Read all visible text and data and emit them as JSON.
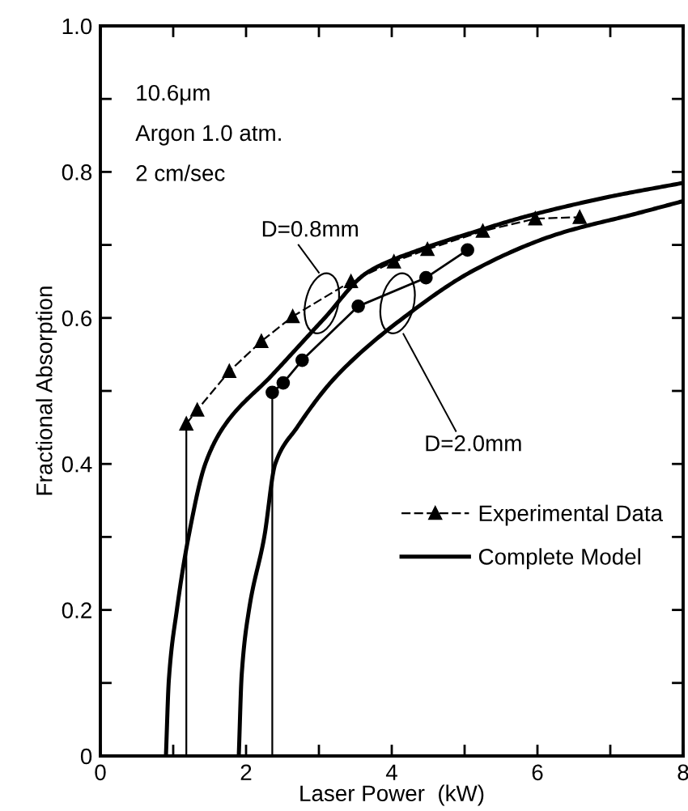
{
  "chart_data": {
    "type": "line",
    "xlabel": "Laser Power  (kW)",
    "ylabel": "Fractional Absorption",
    "xlim": [
      0,
      8
    ],
    "ylim": [
      0,
      1.0
    ],
    "xticks": [
      0,
      {
        "value": 1,
        "label": null
      },
      2,
      {
        "value": 3,
        "label": null
      },
      4,
      {
        "value": 5,
        "label": null
      },
      6,
      {
        "value": 7,
        "label": null
      },
      8
    ],
    "yticks": [
      0,
      {
        "value": 0.1,
        "label": null
      },
      0.2,
      {
        "value": 0.3,
        "label": null
      },
      0.4,
      {
        "value": 0.5,
        "label": null
      },
      0.6,
      {
        "value": 0.7,
        "label": null
      },
      0.8,
      {
        "value": 0.9,
        "label": null
      },
      {
        "value": 1.0,
        "label": "1.0"
      }
    ],
    "grid": false,
    "legend": "right",
    "series": [
      {
        "name": "Experimental Data",
        "color": "#000000",
        "marker": "triangle",
        "line_style": "dashed",
        "x": [
          1.18,
          1.33,
          1.77,
          2.21,
          2.64,
          3.44,
          4.03,
          4.49,
          5.25,
          5.97,
          6.58
        ],
        "values": [
          0.455,
          0.474,
          0.527,
          0.568,
          0.602,
          0.65,
          0.677,
          0.694,
          0.719,
          0.736,
          0.738
        ]
      },
      {
        "color": "#000000",
        "marker": "circle",
        "line_style": "solid",
        "x": [
          2.36,
          2.51,
          2.77,
          3.54,
          4.47,
          5.04
        ],
        "values": [
          0.498,
          0.511,
          0.542,
          0.616,
          0.655,
          0.693
        ]
      },
      {
        "color": "#000000",
        "marker": "none",
        "line_style": "solid",
        "x": [
          1.18,
          1.18
        ],
        "values": [
          0,
          0.455
        ]
      },
      {
        "color": "#000000",
        "marker": "none",
        "line_style": "solid",
        "x": [
          2.36,
          2.36
        ],
        "values": [
          0,
          0.498
        ]
      },
      {
        "name": "Complete Model",
        "color": "#000000",
        "marker": "none",
        "line_style": "solid",
        "x": [
          0.9,
          0.94,
          1.05,
          1.21,
          1.44,
          1.7,
          2.36,
          3.07,
          3.66,
          4.4,
          5.14,
          5.88,
          6.99,
          8.0
        ],
        "values": [
          0,
          0.104,
          0.2,
          0.3,
          0.4,
          0.452,
          0.522,
          0.599,
          0.662,
          0.694,
          0.718,
          0.74,
          0.766,
          0.785
        ]
      },
      {
        "color": "#000000",
        "marker": "none",
        "line_style": "solid",
        "x": [
          1.9,
          1.94,
          2.04,
          2.25,
          2.4,
          2.7,
          3.22,
          4.25,
          5.14,
          6.25,
          7.36,
          8.0
        ],
        "values": [
          0,
          0.111,
          0.2,
          0.3,
          0.4,
          0.45,
          0.518,
          0.607,
          0.666,
          0.714,
          0.743,
          0.76
        ]
      }
    ],
    "annotations": [
      "10.6μm",
      "Argon 1.0 atm.",
      "2 cm/sec",
      "D=0.8mm",
      "D=2.0mm"
    ]
  }
}
